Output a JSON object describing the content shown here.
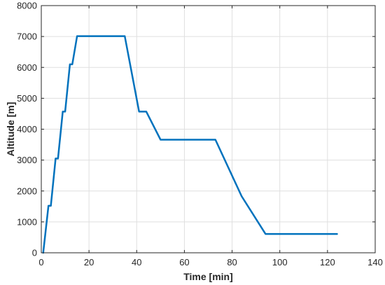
{
  "chart_data": {
    "type": "line",
    "title": "",
    "xlabel": "Time [min]",
    "ylabel": "Altitude [m]",
    "xlim": [
      0,
      140
    ],
    "ylim": [
      0,
      8000
    ],
    "xticks": [
      0,
      20,
      40,
      60,
      80,
      100,
      120,
      140
    ],
    "yticks": [
      0,
      1000,
      2000,
      3000,
      4000,
      5000,
      6000,
      7000,
      8000
    ],
    "grid": true,
    "series": [
      {
        "color": "#0072BD",
        "x": [
          0.8,
          3,
          4,
          6,
          7,
          9,
          10,
          12,
          13,
          15,
          35,
          41,
          44,
          50,
          73,
          84,
          94,
          124
        ],
        "y": [
          0,
          1520,
          1520,
          3050,
          3050,
          4570,
          4570,
          6100,
          6100,
          7010,
          7010,
          4570,
          4570,
          3660,
          3660,
          1830,
          610,
          610
        ]
      }
    ]
  }
}
